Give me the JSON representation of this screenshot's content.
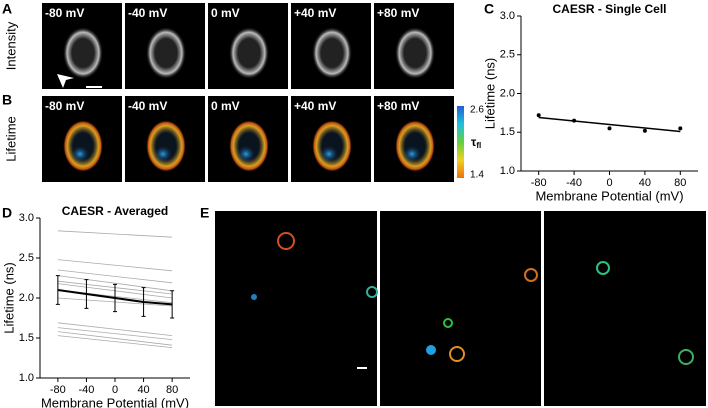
{
  "figure": {
    "panels": {
      "A": "A",
      "B": "B",
      "C": "C",
      "D": "D",
      "E": "E"
    },
    "row_labels": [
      "Intensity",
      "Lifetime"
    ],
    "voltages": [
      "-80 mV",
      "-40 mV",
      "0 mV",
      "+40 mV",
      "+80 mV"
    ],
    "colorbar": {
      "max": "2.6",
      "min": "1.4",
      "symbol": "τ",
      "subscript": "fl"
    }
  },
  "chart_data": [
    {
      "type": "scatter",
      "title": "CAESR - Single Cell",
      "xlabel": "Membrane Potential (mV)",
      "ylabel": "Lifetime (ns)",
      "x": [
        -80,
        -40,
        0,
        40,
        80
      ],
      "values": [
        1.72,
        1.65,
        1.55,
        1.52,
        1.55
      ],
      "fit": {
        "x": [
          -80,
          80
        ],
        "values": [
          1.69,
          1.51
        ]
      },
      "xlim": [
        -100,
        100
      ],
      "ylim": [
        1,
        3
      ],
      "xticks": [
        -80,
        -40,
        0,
        40,
        80
      ],
      "yticks": [
        {
          "value": 1,
          "label": "1.0"
        },
        1.5,
        {
          "value": 2,
          "label": "2.0"
        },
        2.5,
        {
          "value": 3,
          "label": "3.0"
        }
      ]
    },
    {
      "type": "line",
      "title": "CAESR - Averaged",
      "xlabel": "Membrane Potential (mV)",
      "ylabel": "Lifetime (ns)",
      "x": [
        -80,
        -40,
        0,
        40,
        80
      ],
      "values": [
        2.1,
        2.05,
        2.0,
        1.95,
        1.92
      ],
      "errors": [
        0.18,
        0.18,
        0.17,
        0.18,
        0.17
      ],
      "individual": [
        {
          "x": [
            -80,
            80
          ],
          "values": [
            2.84,
            2.76
          ]
        },
        {
          "x": [
            -80,
            80
          ],
          "values": [
            2.48,
            2.34
          ]
        },
        {
          "x": [
            -80,
            80
          ],
          "values": [
            2.35,
            2.19
          ]
        },
        {
          "x": [
            -80,
            80
          ],
          "values": [
            2.28,
            2.09
          ]
        },
        {
          "x": [
            -80,
            80
          ],
          "values": [
            2.21,
            2.05
          ]
        },
        {
          "x": [
            -80,
            80
          ],
          "values": [
            2.18,
            2.0
          ]
        },
        {
          "x": [
            -80,
            80
          ],
          "values": [
            2.1,
            1.94
          ]
        },
        {
          "x": [
            -80,
            80
          ],
          "values": [
            2.0,
            1.9
          ]
        },
        {
          "x": [
            -80,
            80
          ],
          "values": [
            1.69,
            1.53
          ]
        },
        {
          "x": [
            -80,
            80
          ],
          "values": [
            1.63,
            1.48
          ]
        },
        {
          "x": [
            -80,
            80
          ],
          "values": [
            1.58,
            1.41
          ]
        },
        {
          "x": [
            -80,
            80
          ],
          "values": [
            1.53,
            1.38
          ]
        }
      ],
      "xlim": [
        -105,
        105
      ],
      "ylim": [
        1,
        3
      ],
      "xticks": [
        -80,
        -40,
        0,
        40,
        80
      ],
      "yticks": [
        {
          "value": 1,
          "label": "1.0"
        },
        1.5,
        {
          "value": 2,
          "label": "2.0"
        },
        2.5,
        {
          "value": 3,
          "label": "3.0"
        }
      ]
    }
  ]
}
